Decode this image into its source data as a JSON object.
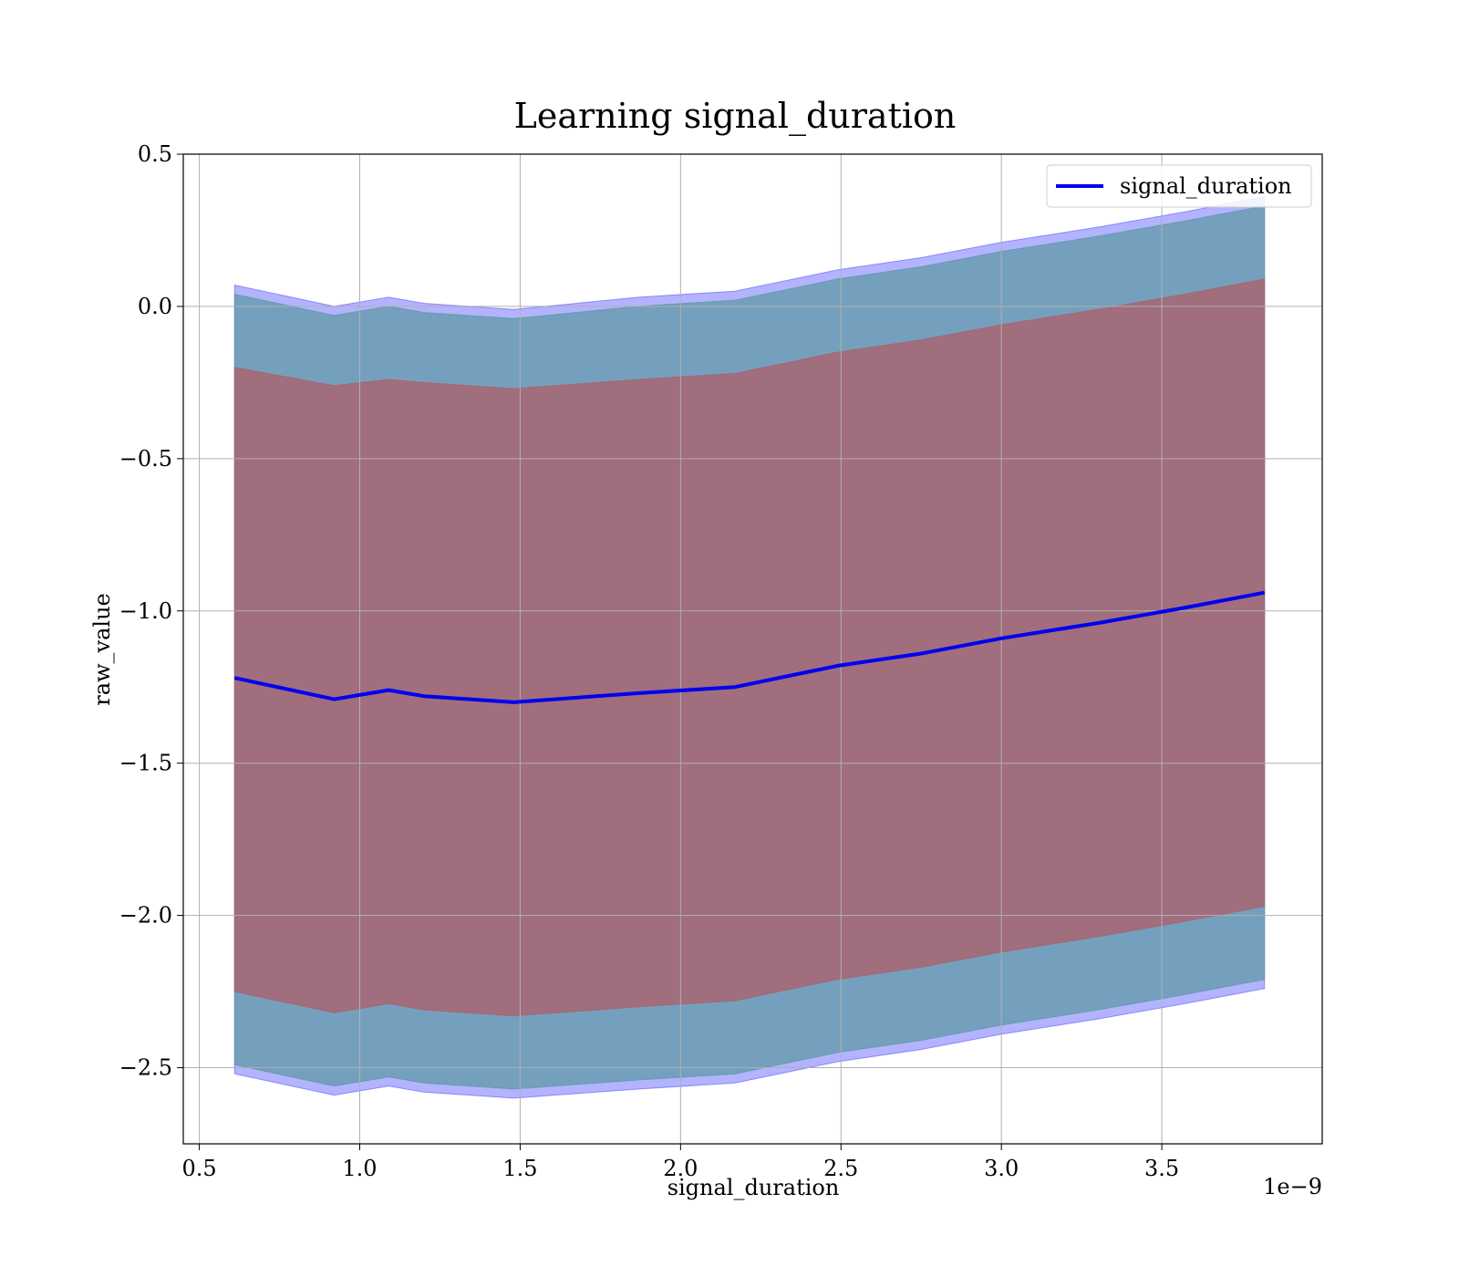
{
  "chart_data": {
    "type": "line",
    "title": "Learning signal_duration",
    "xlabel": "signal_duration",
    "ylabel": "raw_value",
    "x_offset_label": "1e−9",
    "xlim": [
      0.45,
      4.0
    ],
    "ylim": [
      -2.75,
      0.5
    ],
    "xticks": [
      0.5,
      1.0,
      1.5,
      2.0,
      2.5,
      3.0,
      3.5
    ],
    "xtick_labels": [
      "0.5",
      "1.0",
      "1.5",
      "2.0",
      "2.5",
      "3.0",
      "3.5"
    ],
    "yticks": [
      0.5,
      0.0,
      -0.5,
      -1.0,
      -1.5,
      -2.0,
      -2.5
    ],
    "ytick_labels": [
      "0.5",
      "0.0",
      "−0.5",
      "−1.0",
      "−1.5",
      "−2.0",
      "−2.5"
    ],
    "grid": true,
    "legend_position": "top-right",
    "x": [
      0.61,
      0.92,
      1.09,
      1.2,
      1.48,
      1.87,
      2.17,
      2.49,
      2.75,
      3.0,
      3.3,
      3.57,
      3.82
    ],
    "series": [
      {
        "name": "signal_duration",
        "color": "#0000ee",
        "values": [
          -1.22,
          -1.29,
          -1.26,
          -1.28,
          -1.3,
          -1.27,
          -1.25,
          -1.18,
          -1.14,
          -1.09,
          -1.04,
          -0.99,
          -0.94
        ]
      }
    ],
    "bands": [
      {
        "color": "#8080ff",
        "lower": [
          -2.52,
          -2.59,
          -2.56,
          -2.58,
          -2.6,
          -2.57,
          -2.55,
          -2.48,
          -2.44,
          -2.39,
          -2.34,
          -2.29,
          -2.24
        ],
        "upper": [
          0.07,
          0.0,
          0.03,
          0.01,
          -0.01,
          0.03,
          0.05,
          0.12,
          0.16,
          0.21,
          0.26,
          0.31,
          0.36
        ]
      },
      {
        "color": "#5f9aa8",
        "lower": [
          -2.49,
          -2.56,
          -2.53,
          -2.55,
          -2.57,
          -2.54,
          -2.52,
          -2.45,
          -2.41,
          -2.36,
          -2.31,
          -2.26,
          -2.21
        ],
        "upper": [
          0.04,
          -0.03,
          0.0,
          -0.02,
          -0.04,
          0.0,
          0.02,
          0.09,
          0.13,
          0.18,
          0.23,
          0.28,
          0.33
        ]
      },
      {
        "color": "#a86572",
        "lower": [
          -2.25,
          -2.32,
          -2.29,
          -2.31,
          -2.33,
          -2.3,
          -2.28,
          -2.21,
          -2.17,
          -2.12,
          -2.07,
          -2.02,
          -1.97
        ],
        "upper": [
          -0.2,
          -0.26,
          -0.24,
          -0.25,
          -0.27,
          -0.24,
          -0.22,
          -0.15,
          -0.11,
          -0.06,
          -0.01,
          0.04,
          0.09
        ]
      }
    ]
  }
}
